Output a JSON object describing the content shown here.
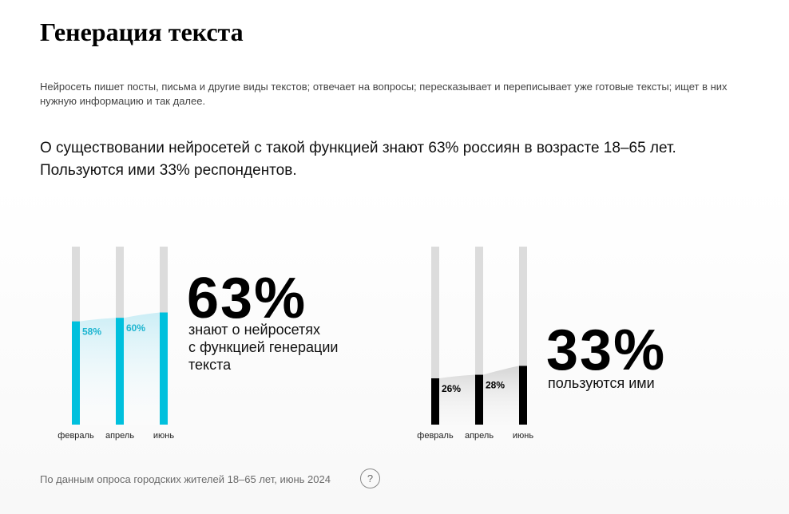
{
  "page": {
    "title": "Генерация текста",
    "description": "Нейросеть пишет посты, письма и другие виды текстов; отвечает на вопросы; пересказывает и переписывает уже готовые тексты; ищет в них нужную информацию и так далее.",
    "summary_line1": "О существовании нейросетей с такой функцией знают 63% россиян в возрасте 18–65 лет.",
    "summary_line2": "Пользуются ими 33% респондентов.",
    "source": "По данным опроса городских жителей 18–65 лет, июнь 2024",
    "help_label": "?"
  },
  "colors": {
    "aware": "#00c0dd",
    "use": "#000000",
    "track": "#dcdcdc"
  },
  "chart_data": [
    {
      "type": "bar",
      "categories": [
        "февраль",
        "апрель",
        "июнь"
      ],
      "values": [
        58,
        60,
        63
      ],
      "value_labels": [
        "58%",
        "60%",
        ""
      ],
      "ylim": [
        0,
        100
      ],
      "highlight": "63%",
      "caption": "знают о нейросетях\nс функцией генерации\nтекста"
    },
    {
      "type": "bar",
      "categories": [
        "февраль",
        "апрель",
        "июнь"
      ],
      "values": [
        26,
        28,
        33
      ],
      "value_labels": [
        "26%",
        "28%",
        ""
      ],
      "ylim": [
        0,
        100
      ],
      "highlight": "33%",
      "caption": "пользуются ими"
    }
  ]
}
